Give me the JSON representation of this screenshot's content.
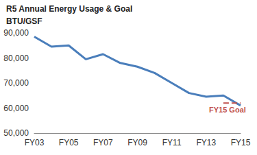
{
  "chart_data": {
    "type": "line",
    "title": "R5 Annual Energy Usage & Goal",
    "ylabel": "BTU/GSF",
    "categories": [
      "FY03",
      null,
      "FY05",
      null,
      "FY07",
      null,
      "FY09",
      null,
      "FY11",
      null,
      "FY13",
      null,
      "FY15"
    ],
    "series": [
      {
        "color": "#4a7ebb",
        "line_style": "solid",
        "values": [
          88500,
          84500,
          85000,
          79500,
          81500,
          78000,
          76500,
          74000,
          70000,
          66000,
          64500,
          65000,
          61000
        ]
      },
      {
        "name": "FY15 Goal",
        "color": "#c0504d",
        "line_style": "dashed",
        "values": [
          null,
          null,
          null,
          null,
          null,
          null,
          null,
          null,
          null,
          null,
          null,
          62000,
          62000
        ]
      }
    ],
    "ylim": [
      50000,
      90000
    ],
    "yticks": [
      {
        "value": 50000,
        "label": "50,000"
      },
      {
        "value": 60000,
        "label": "60,000"
      },
      {
        "value": 70000,
        "label": "70,000"
      },
      {
        "value": 80000,
        "label": "80,000"
      },
      {
        "value": 90000,
        "label": "90,000"
      }
    ],
    "grid": false
  }
}
